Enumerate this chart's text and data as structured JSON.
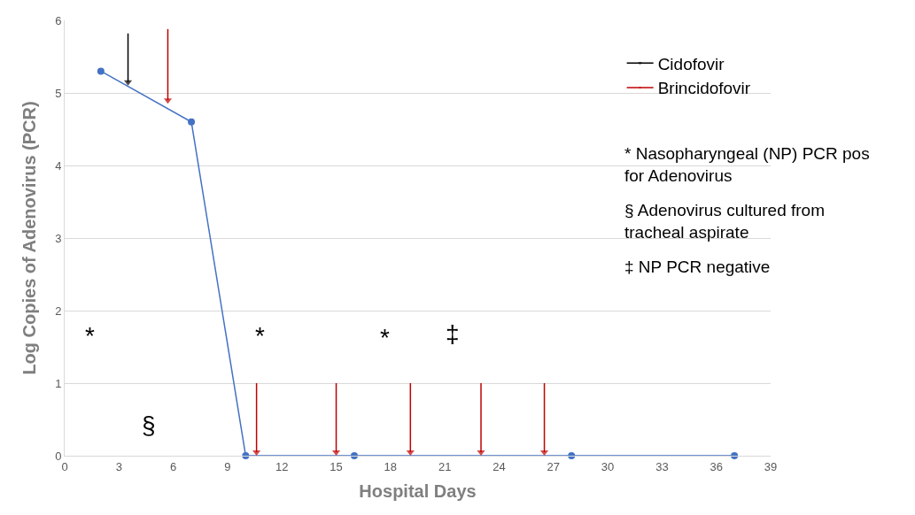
{
  "chart_data": {
    "type": "line",
    "xlabel": "Hospital Days",
    "ylabel": "Log Copies of Adenovirus (PCR)",
    "xlim": [
      0,
      39
    ],
    "xticks": [
      0,
      3,
      6,
      9,
      12,
      15,
      18,
      21,
      24,
      27,
      30,
      33,
      36,
      39
    ],
    "ylim": [
      0,
      6
    ],
    "yticks": [
      0,
      1,
      2,
      3,
      4,
      5,
      6
    ],
    "grid": "y",
    "legend": "top right",
    "series": [
      {
        "color": "#4472c4",
        "marker": "circle",
        "x": [
          2,
          7,
          10,
          16,
          28,
          37
        ],
        "values": [
          5.3,
          4.6,
          0,
          0,
          0,
          0
        ]
      },
      {
        "name": "Cidofovir",
        "color": "#000000",
        "marker": "triangle",
        "x": [
          3.5,
          3.5
        ],
        "values": [
          5.82,
          5.15
        ]
      },
      {
        "name": "Brincidofovir",
        "color": "#c00000",
        "marker": "triangle",
        "x": [
          5.7,
          5.7,
          null,
          10.6,
          10.6,
          null,
          15,
          15,
          null,
          19.1,
          19.1,
          null,
          23,
          23,
          null,
          26.5,
          26.5
        ],
        "values": [
          5.88,
          4.9,
          null,
          1,
          0.05,
          null,
          1,
          0.05,
          null,
          1,
          0.05,
          null,
          1,
          0.05,
          null,
          1,
          0.05
        ]
      }
    ],
    "annotations": [
      "*",
      "*",
      "*",
      "‡",
      "§",
      "* Nasopharyngeal (NP) PCR pos for Adenovirus",
      "§ Adenovirus cultured from tracheal aspirate",
      "‡ NP PCR negative"
    ]
  }
}
